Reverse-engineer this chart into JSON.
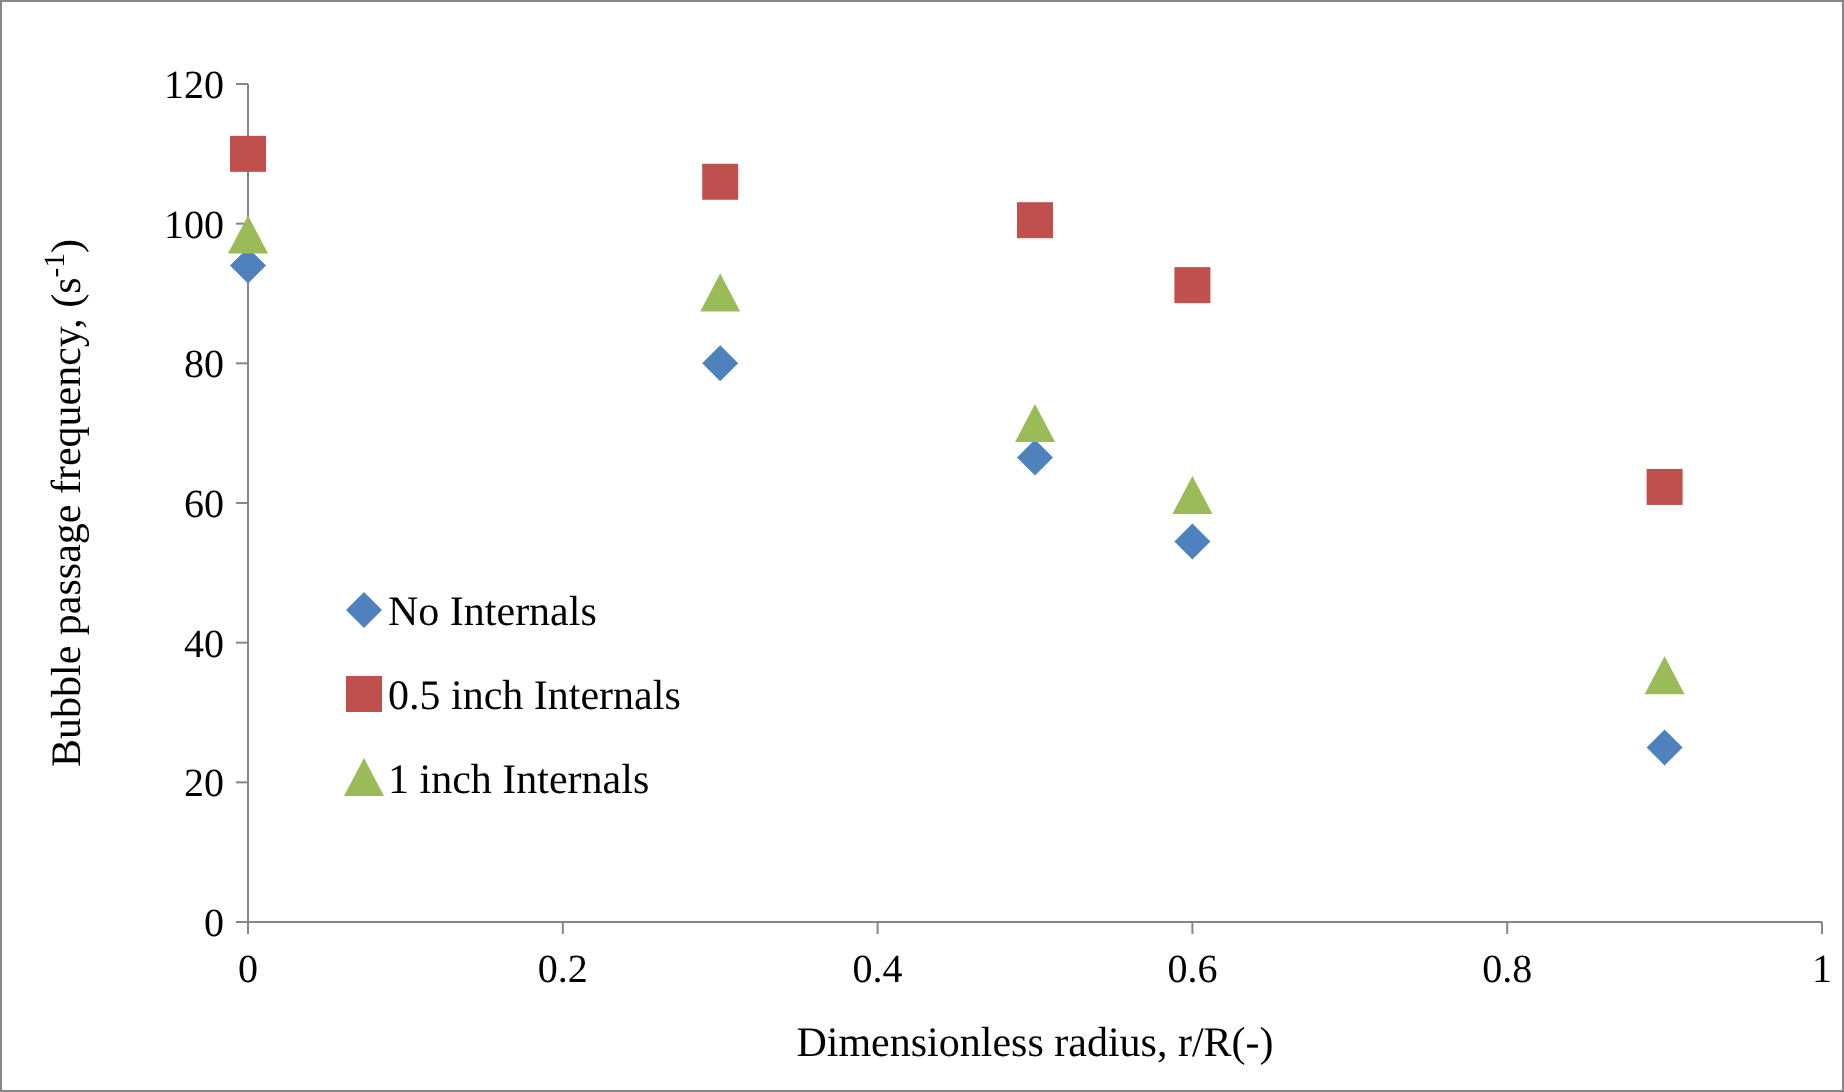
{
  "chart_data": {
    "type": "scatter",
    "xlabel": "Dimensionless radius, r/R(-)",
    "ylabel": "Bubble passage frequency, (s$^{-1}$)",
    "x": [
      0,
      0.3,
      0.5,
      0.6,
      0.9
    ],
    "xlim": [
      0,
      1
    ],
    "xticks": [
      0,
      0.2,
      0.4,
      0.6,
      0.8,
      1
    ],
    "ylim": [
      0,
      120
    ],
    "yticks": [
      0,
      20,
      40,
      60,
      80,
      100,
      120
    ],
    "grid": false,
    "legend": "left",
    "series": [
      {
        "name": "No Internals",
        "color": "#4f81bd",
        "marker": "diamond",
        "values": [
          94,
          80,
          66.5,
          54.5,
          25
        ]
      },
      {
        "name": "0.5 inch Internals",
        "color": "#c0504d",
        "marker": "square",
        "values": [
          110,
          106,
          100.5,
          91.2,
          62.3
        ]
      },
      {
        "name": "1 inch Internals",
        "color": "#9bbb59",
        "marker": "triangle",
        "values": [
          98.3,
          90,
          71.3,
          61,
          35.2
        ]
      }
    ]
  }
}
